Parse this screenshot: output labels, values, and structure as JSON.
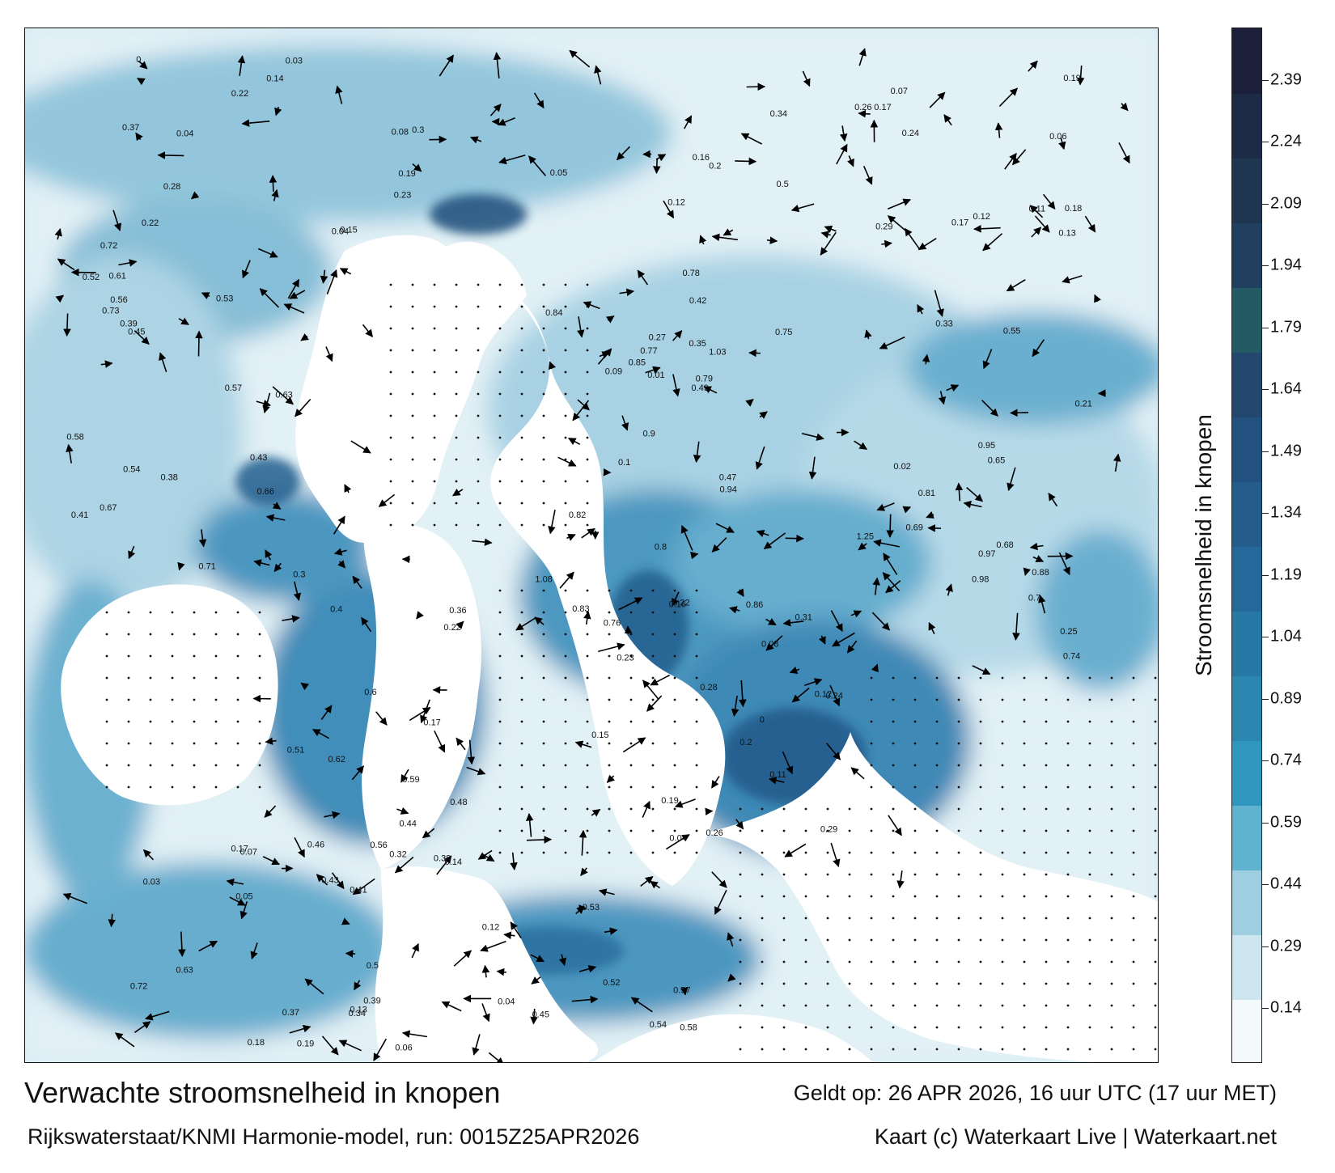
{
  "map": {
    "title": "Verwachte stroomsnelheid in knopen",
    "subtitle": "Rijkswaterstaat/KNMI Harmonie-model, run: 0015Z25APR2026",
    "valid_time": "Geldt op: 26 APR 2026, 16 uur UTC (17 uur MET)",
    "credit": "Kaart (c) Waterkaart Live | Waterkaart.net",
    "land_color": "#ffffff",
    "arrow_color": "#000000"
  },
  "colorbar": {
    "title": "Stroomsnelheid in knopen",
    "ticks": [
      "0.14",
      "0.29",
      "0.44",
      "0.59",
      "0.74",
      "0.89",
      "1.04",
      "1.19",
      "1.34",
      "1.49",
      "1.64",
      "1.79",
      "1.94",
      "2.09",
      "2.24",
      "2.39"
    ],
    "colors": [
      "#f4f9fb",
      "#cde6ef",
      "#9dcfe0",
      "#5fb3cf",
      "#2f96bd",
      "#2b86b0",
      "#2878a6",
      "#25699a",
      "#245c8c",
      "#23517f",
      "#23476f",
      "#245a63",
      "#21405f",
      "#1f3650",
      "#1d2b47",
      "#1b1f3a"
    ]
  },
  "labels": [
    {
      "t": "0.17"
    },
    {
      "t": "0.3"
    },
    {
      "t": "0.22"
    },
    {
      "t": "0.15"
    },
    {
      "t": "0.19"
    },
    {
      "t": "0.16"
    },
    {
      "t": "0.2"
    },
    {
      "t": "0.22"
    },
    {
      "t": "0.26"
    },
    {
      "t": "0.29"
    },
    {
      "t": "0.28"
    },
    {
      "t": "0.24"
    },
    {
      "t": "0.23"
    },
    {
      "t": "0.11"
    },
    {
      "t": "0.12"
    },
    {
      "t": "0.08"
    },
    {
      "t": "0.04"
    },
    {
      "t": "0"
    },
    {
      "t": "0.18"
    },
    {
      "t": "0.17"
    },
    {
      "t": "0.19"
    },
    {
      "t": "0.12"
    },
    {
      "t": "0.14"
    },
    {
      "t": "0.13"
    },
    {
      "t": "0.07"
    },
    {
      "t": "0.06"
    },
    {
      "t": "0.05"
    },
    {
      "t": "0.04"
    },
    {
      "t": "0.03"
    },
    {
      "t": "0.37"
    },
    {
      "t": "0.34"
    },
    {
      "t": "0.5"
    },
    {
      "t": "0.41"
    },
    {
      "t": "0.56"
    },
    {
      "t": "0.63"
    },
    {
      "t": "0.72"
    },
    {
      "t": "0.39"
    },
    {
      "t": "0.38"
    },
    {
      "t": "0.43"
    },
    {
      "t": "0.45"
    },
    {
      "t": "0.54"
    },
    {
      "t": "0.52"
    },
    {
      "t": "0.58"
    },
    {
      "t": "0.53"
    },
    {
      "t": "0.57"
    },
    {
      "t": "0.61"
    },
    {
      "t": "0.67"
    },
    {
      "t": "0.71"
    },
    {
      "t": "0.66"
    },
    {
      "t": "0.73"
    },
    {
      "t": "0.77"
    },
    {
      "t": "0.86"
    },
    {
      "t": "0.9"
    },
    {
      "t": "0.81"
    },
    {
      "t": "0.83"
    },
    {
      "t": "0.79"
    },
    {
      "t": "1.03"
    },
    {
      "t": "1.25"
    },
    {
      "t": "0.98"
    },
    {
      "t": "0.84"
    },
    {
      "t": "0.85"
    },
    {
      "t": "0.88"
    },
    {
      "t": "0.76"
    },
    {
      "t": "0.74"
    },
    {
      "t": "0.68"
    },
    {
      "t": "0.69"
    },
    {
      "t": "0.65"
    },
    {
      "t": "0.55"
    },
    {
      "t": "0.49"
    },
    {
      "t": "0.47"
    },
    {
      "t": "0.42"
    },
    {
      "t": "0.35"
    },
    {
      "t": "0.33"
    },
    {
      "t": "0.31"
    },
    {
      "t": "0.27"
    },
    {
      "t": "0.25"
    },
    {
      "t": "0.21"
    },
    {
      "t": "0.1"
    },
    {
      "t": "0.09"
    },
    {
      "t": "0.02"
    },
    {
      "t": "0.01"
    },
    {
      "t": "0.94"
    },
    {
      "t": "0.95"
    },
    {
      "t": "1.08"
    },
    {
      "t": "0.82"
    },
    {
      "t": "0.78"
    },
    {
      "t": "0.97"
    },
    {
      "t": "0.8"
    },
    {
      "t": "0.75"
    },
    {
      "t": "0.7"
    },
    {
      "t": "0.62"
    },
    {
      "t": "0.6"
    },
    {
      "t": "0.59"
    },
    {
      "t": "0.51"
    },
    {
      "t": "0.48"
    },
    {
      "t": "0.46"
    },
    {
      "t": "0.44"
    },
    {
      "t": "0.4"
    },
    {
      "t": "0.36"
    },
    {
      "t": "0.32"
    }
  ]
}
